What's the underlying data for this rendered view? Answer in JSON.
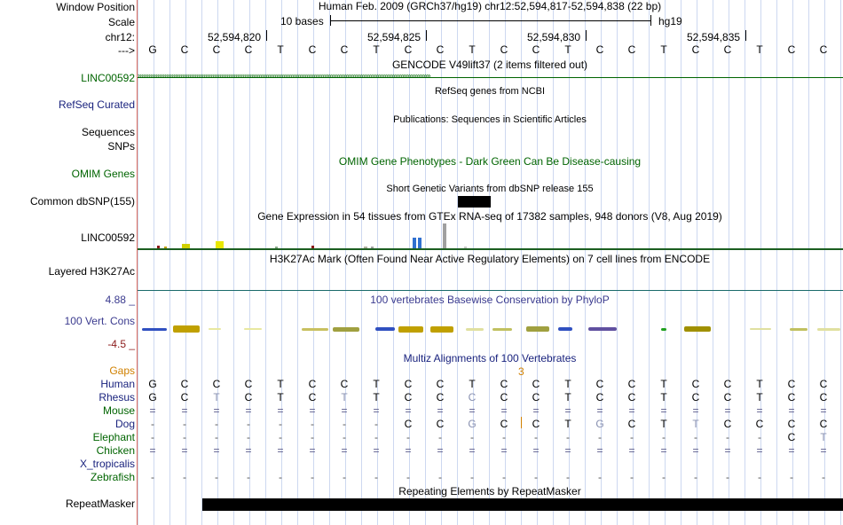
{
  "labels": {
    "window_position": "Window Position",
    "scale": "Scale",
    "chrom": "chr12:",
    "arrow": "--->",
    "linc1": "LINC00592",
    "refseq": "RefSeq Curated",
    "sequences": "Sequences",
    "snps": "SNPs",
    "omim": "OMIM Genes",
    "dbsnp": "Common dbSNP(155)",
    "linc2": "LINC00592",
    "h3k27": "Layered H3K27Ac",
    "phylop_max": "4.88 _",
    "vert_cons": "100 Vert. Cons",
    "phylop_min": "-4.5 _",
    "gaps": "Gaps",
    "species": [
      "Human",
      "Rhesus",
      "Mouse",
      "Dog",
      "Elephant",
      "Chicken",
      "X_tropicalis",
      "Zebrafish"
    ],
    "repeatmasker": "RepeatMasker"
  },
  "header": {
    "position_text": "Human Feb. 2009 (GRCh37/hg19)   chr12:52,594,817-52,594,838 (22 bp)",
    "scale_text": "10 bases",
    "assembly": "hg19",
    "coords": [
      "52,594,820",
      "52,594,825",
      "52,594,830",
      "52,594,835"
    ]
  },
  "sequence": [
    "G",
    "C",
    "C",
    "C",
    "T",
    "C",
    "C",
    "T",
    "C",
    "C",
    "T",
    "C",
    "C",
    "T",
    "C",
    "C",
    "T",
    "C",
    "C",
    "T",
    "C",
    "C"
  ],
  "tracks": {
    "gencode": "GENCODE V49lift37 (2 items filtered out)",
    "refseq": "RefSeq genes from NCBI",
    "publications": "Publications: Sequences in Scientific Articles",
    "omim": "OMIM Gene Phenotypes - Dark Green Can Be Disease-causing",
    "dbsnp": "Short Genetic Variants from dbSNP release 155",
    "gtex": "Gene Expression in 54 tissues from GTEx RNA-seq of 17382 samples, 948 donors (V8, Aug 2019)",
    "h3k27": "H3K27Ac Mark (Often Found Near Active Regulatory Elements) on 7 cell lines from ENCODE",
    "phylop": "100 vertebrates Basewise Conservation by PhyloP",
    "multiz": "Multiz Alignments of 100 Vertebrates",
    "gap_count": "3",
    "repeatmasker": "Repeating Elements by RepeatMasker"
  },
  "alignment": {
    "Human": [
      "G",
      "C",
      "C",
      "C",
      "T",
      "C",
      "C",
      "T",
      "C",
      "C",
      "T",
      "C",
      "C",
      "T",
      "C",
      "C",
      "T",
      "C",
      "C",
      "T",
      "C",
      "C"
    ],
    "Rhesus": [
      "G",
      "C",
      "T",
      "C",
      "T",
      "C",
      "T",
      "T",
      "C",
      "C",
      "C",
      "C",
      "C",
      "T",
      "C",
      "C",
      "T",
      "C",
      "C",
      "T",
      "C",
      "C"
    ],
    "Mouse": [
      "=",
      "=",
      "=",
      "=",
      "=",
      "=",
      "=",
      "=",
      "=",
      "=",
      "=",
      "=",
      "=",
      "=",
      "=",
      "=",
      "=",
      "=",
      "=",
      "=",
      "=",
      "="
    ],
    "Dog": [
      "-",
      "-",
      "-",
      "-",
      "-",
      "-",
      "-",
      "-",
      "C",
      "C",
      "G",
      "C",
      "C",
      "T",
      "G",
      "C",
      "T",
      "T",
      "C",
      "C",
      "C",
      "C"
    ],
    "Elephant": [
      "-",
      "-",
      "-",
      "-",
      "-",
      "-",
      "-",
      "-",
      "-",
      "-",
      "-",
      "-",
      "-",
      "-",
      "-",
      "-",
      "-",
      "-",
      "-",
      "-",
      "C",
      "T"
    ],
    "Chicken": [
      "=",
      "=",
      "=",
      "=",
      "=",
      "=",
      "=",
      "=",
      "=",
      "=",
      "=",
      "=",
      "=",
      "=",
      "=",
      "=",
      "=",
      "=",
      "=",
      "=",
      "=",
      "="
    ],
    "Zebrafish": [
      "-",
      "-",
      "-",
      "-",
      "-",
      "-",
      "-",
      "-",
      "-",
      "-",
      "-",
      "-",
      "-",
      "-",
      "-",
      "-",
      "-",
      "-",
      "-",
      "-",
      "-",
      "-"
    ]
  },
  "colors": {
    "label_green": "#006400",
    "label_blue": "#1a237e",
    "phylop_blue": "#3b3b8f",
    "phylop_red": "#8b1a1a",
    "gaps_orange": "#d08000",
    "h3k27_line": "#1a6b6b",
    "gtex_line": "#1b5e20"
  }
}
